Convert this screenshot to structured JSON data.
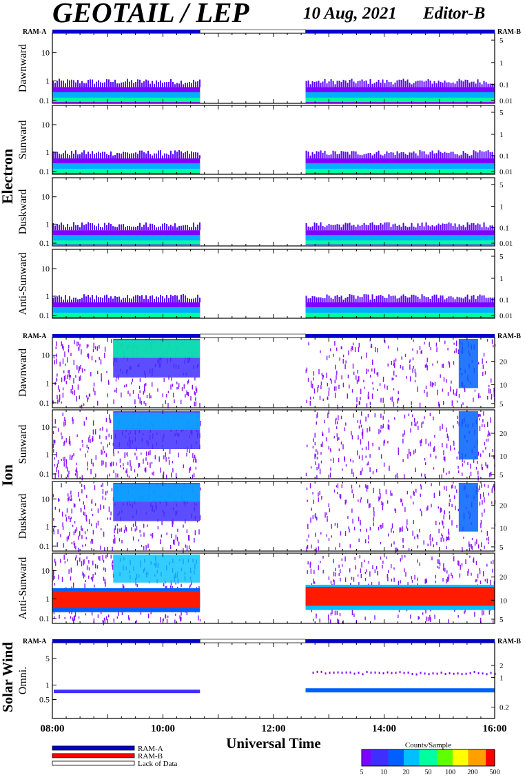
{
  "header": {
    "title": "GEOTAIL / LEP",
    "date": "10 Aug, 2021",
    "editor": "Editor-B"
  },
  "ram": {
    "left": "RAM-A",
    "right": "RAM-B"
  },
  "groups": {
    "electron": "Electron",
    "ion": "Ion",
    "solar_wind": "Solar Wind"
  },
  "chart_data": {
    "type": "heatmap",
    "xlabel": "Universal Time",
    "x_ticks": [
      "08:00",
      "10:00",
      "12:00",
      "14:00",
      "16:00"
    ],
    "xlim_hours": [
      8,
      16
    ],
    "data_gap_hours": [
      10.67,
      12.58
    ],
    "panels": [
      {
        "group": "Electron",
        "label": "Dawnward",
        "left_ticks": [
          "10",
          "1",
          "0.1"
        ],
        "right_ticks": [
          "5",
          "1",
          "0.1",
          "0.01"
        ]
      },
      {
        "group": "Electron",
        "label": "Sunward",
        "left_ticks": [
          "10",
          "1",
          "0.1"
        ],
        "right_ticks": [
          "5",
          "1",
          "0.1",
          "0.01"
        ]
      },
      {
        "group": "Electron",
        "label": "Duskward",
        "left_ticks": [
          "10",
          "1",
          "0.1"
        ],
        "right_ticks": [
          "5",
          "1",
          "0.1",
          "0.01"
        ]
      },
      {
        "group": "Electron",
        "label": "Anti-Sunward",
        "left_ticks": [
          "10",
          "1",
          "0.1"
        ],
        "right_ticks": [
          "5",
          "1",
          "0.1",
          "0.01"
        ]
      },
      {
        "group": "Ion",
        "label": "Dawnward",
        "left_ticks": [
          "10",
          "1",
          "0.1"
        ],
        "right_ticks": [
          "20",
          "10",
          "5"
        ]
      },
      {
        "group": "Ion",
        "label": "Sunward",
        "left_ticks": [
          "10",
          "1",
          "0.1"
        ],
        "right_ticks": [
          "20",
          "10",
          "5"
        ]
      },
      {
        "group": "Ion",
        "label": "Duskward",
        "left_ticks": [
          "10",
          "1",
          "0.1"
        ],
        "right_ticks": [
          "20",
          "10",
          "5"
        ]
      },
      {
        "group": "Ion",
        "label": "Anti-Sunward",
        "left_ticks": [
          "10",
          "1",
          "0.1"
        ],
        "right_ticks": [
          "20",
          "10",
          "5"
        ]
      },
      {
        "group": "Solar Wind",
        "label": "Omni.",
        "left_ticks": [
          "5",
          "1",
          "0.5"
        ],
        "right_ticks": [
          "2",
          "1",
          "0.2"
        ]
      }
    ],
    "colorbar": {
      "label": "Counts/Sample",
      "ticks": [
        "5",
        "10",
        "20",
        "50",
        "100",
        "200",
        "500"
      ],
      "colors": [
        "#7f00ff",
        "#3f2fff",
        "#0060ff",
        "#00c0ff",
        "#00ff9f",
        "#60ff00",
        "#ffff00",
        "#ff9f00",
        "#ff0000"
      ]
    },
    "legend": [
      {
        "label": "RAM-A",
        "color": "#0000cc"
      },
      {
        "label": "RAM-B",
        "color": "#ff0000"
      },
      {
        "label": "Lack of Data",
        "color": "#ffffff"
      }
    ]
  }
}
